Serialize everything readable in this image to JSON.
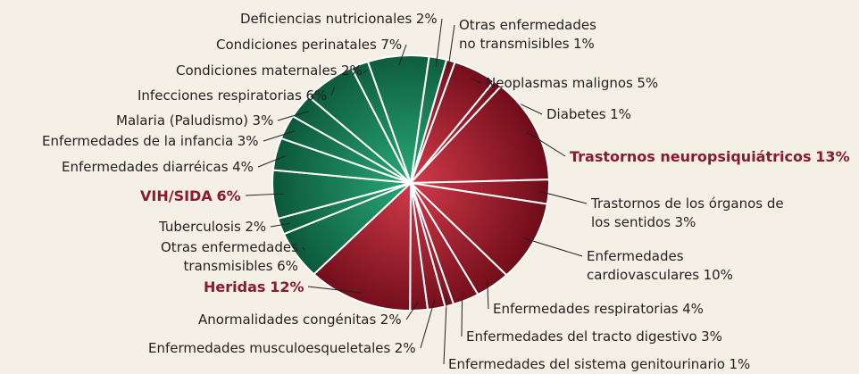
{
  "chart_data": {
    "type": "pie",
    "categories": [
      "Otras enfermedades\nno transmisibles",
      "Neoplasmas malignos",
      "Diabetes",
      "Trastornos neuropsiquiátricos",
      "Trastornos de los órganos de\nlos sentidos",
      "Enfermedades\ncardiovasculares",
      "Enfermedades respiratorias",
      "Enfermedades del tracto digestivo",
      "Enfermedades del sistema genitourinario",
      "Enfermedades musculoesqueletales",
      "Anormalidades congénitas",
      "Heridas",
      "Otras enfermedades\ntransmisibles",
      "Tuberculosis",
      "VIH/SIDA",
      "Enfermedades diarréicas",
      "Enfermedades de la infancia",
      "Malaria (Paludismo)",
      "Infecciones respiratorias",
      "Condiciones maternales",
      "Condiciones perinatales",
      "Deficiencias nutricionales"
    ],
    "values": [
      1,
      5,
      1,
      13,
      3,
      10,
      4,
      3,
      1,
      2,
      2,
      12,
      6,
      2,
      6,
      4,
      3,
      3,
      6,
      2,
      7,
      2
    ],
    "value_labels": [
      "1%",
      "5%",
      "1%",
      "13%",
      "3%",
      "10%",
      "4%",
      "3%",
      "1%",
      "2%",
      "2%",
      "12%",
      "6%",
      "2%",
      "6%",
      "4%",
      "3%",
      "3%",
      "6%",
      "2%",
      "7%",
      "2%"
    ],
    "colors": [
      "#a81c2c",
      "#a81c2c",
      "#a81c2c",
      "#a81c2c",
      "#a81c2c",
      "#a81c2c",
      "#a81c2c",
      "#a81c2c",
      "#a81c2c",
      "#a81c2c",
      "#a81c2c",
      "#a81c2c",
      "#0d7a52",
      "#0d7a52",
      "#0d7a52",
      "#0d7a52",
      "#0d7a52",
      "#0d7a52",
      "#0d7a52",
      "#0d7a52",
      "#0d7a52",
      "#0d7a52"
    ],
    "highlight": [
      false,
      false,
      false,
      true,
      false,
      false,
      false,
      false,
      false,
      false,
      false,
      true,
      false,
      false,
      true,
      false,
      false,
      false,
      false,
      false,
      false,
      false
    ]
  }
}
